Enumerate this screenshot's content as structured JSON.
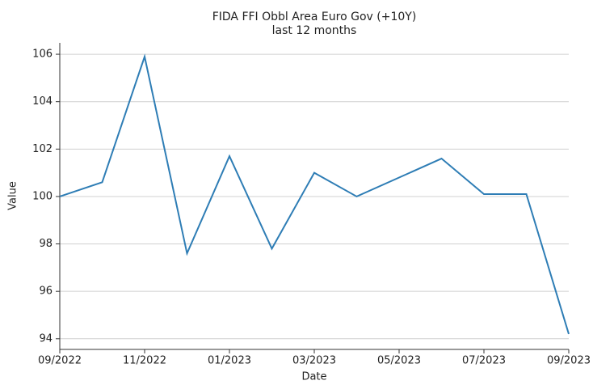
{
  "chart_data": {
    "type": "line",
    "title": "FIDA FFI Obbl Area Euro Gov (+10Y)",
    "subtitle": "last 12 months",
    "x_label": "Date",
    "y_label": "Value",
    "categories": [
      "09/2022",
      null,
      "11/2022",
      null,
      "01/2023",
      null,
      "03/2023",
      null,
      "05/2023",
      null,
      "07/2023",
      null,
      "09/2023"
    ],
    "series": [
      {
        "name": "Value",
        "color": "#2e7db5",
        "values": [
          100.0,
          100.6,
          105.9,
          97.6,
          101.7,
          97.8,
          101.0,
          100.0,
          100.8,
          101.6,
          100.1,
          100.1,
          94.2
        ]
      }
    ],
    "ylim": [
      93.55,
      106.48
    ],
    "yticks": [
      94,
      96,
      98,
      100,
      102,
      104,
      106
    ],
    "grid": true
  }
}
